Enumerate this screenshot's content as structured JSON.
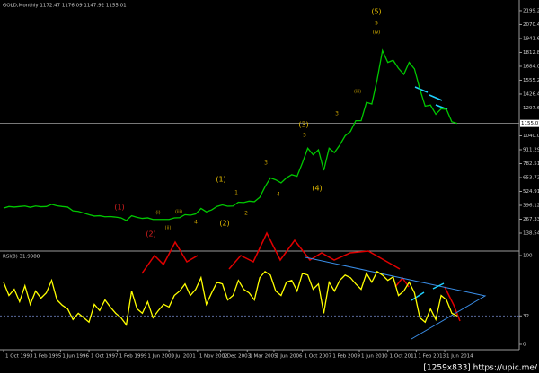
{
  "chart_data": [
    {
      "type": "line",
      "title": "GOLD,Monthly  1172.47 1176.09 1147.92 1155.01",
      "color": "#00c800",
      "x": [
        "1993-10",
        "1994-01",
        "1994-04",
        "1994-07",
        "1994-10",
        "1995-01",
        "1995-04",
        "1995-07",
        "1995-10",
        "1996-01",
        "1996-04",
        "1996-07",
        "1996-10",
        "1997-01",
        "1997-04",
        "1997-07",
        "1997-10",
        "1998-01",
        "1998-04",
        "1998-07",
        "1998-10",
        "1999-01",
        "1999-04",
        "1999-07",
        "1999-10",
        "2000-01",
        "2000-04",
        "2000-07",
        "2000-10",
        "2001-01",
        "2001-04",
        "2001-07",
        "2001-10",
        "2002-01",
        "2002-04",
        "2002-07",
        "2002-10",
        "2003-01",
        "2003-04",
        "2003-07",
        "2003-10",
        "2004-01",
        "2004-04",
        "2004-07",
        "2004-10",
        "2005-01",
        "2005-04",
        "2005-07",
        "2005-10",
        "2006-01",
        "2006-04",
        "2006-07",
        "2006-10",
        "2007-01",
        "2007-04",
        "2007-07",
        "2007-10",
        "2008-01",
        "2008-04",
        "2008-07",
        "2008-10",
        "2009-01",
        "2009-04",
        "2009-07",
        "2009-10",
        "2010-01",
        "2010-04",
        "2010-07",
        "2010-10",
        "2011-01",
        "2011-04",
        "2011-07",
        "2011-10",
        "2012-01",
        "2012-04",
        "2012-07",
        "2012-10",
        "2013-01",
        "2013-04",
        "2013-07",
        "2013-10",
        "2014-01",
        "2014-04",
        "2014-07",
        "2014-10",
        "2015-01"
      ],
      "values": [
        370,
        385,
        380,
        385,
        390,
        378,
        390,
        383,
        385,
        405,
        392,
        385,
        380,
        345,
        340,
        325,
        310,
        297,
        300,
        290,
        292,
        287,
        280,
        255,
        300,
        285,
        275,
        280,
        265,
        265,
        265,
        265,
        280,
        282,
        310,
        305,
        317,
        367,
        336,
        354,
        386,
        400,
        388,
        390,
        425,
        422,
        435,
        430,
        470,
        568,
        650,
        632,
        604,
        650,
        680,
        665,
        790,
        925,
        865,
        910,
        720,
        925,
        885,
        955,
        1040,
        1080,
        1180,
        1180,
        1350,
        1335,
        1560,
        1830,
        1720,
        1740,
        1665,
        1610,
        1720,
        1660,
        1475,
        1315,
        1325,
        1240,
        1290,
        1285,
        1170,
        1155.01
      ],
      "current_price": 1155.01,
      "ylim": [
        -11,
        2282
      ],
      "yticks": [
        138.54,
        267.33,
        396.12,
        524.91,
        653.72,
        782.51,
        911.29,
        1040.08,
        1297.66,
        1426.45,
        1555.24,
        1684.03,
        1812.82,
        1941.61,
        2070.41,
        2199.25
      ],
      "xticks": [
        {
          "value": "1993-10",
          "label": "1 Oct 1993"
        },
        {
          "value": "1995-02",
          "label": "1 Feb 1995"
        },
        {
          "value": "1996-06",
          "label": "1 Jun 1996"
        },
        {
          "value": "1997-10",
          "label": "1 Oct 1997"
        },
        {
          "value": "1999-02",
          "label": "1 Feb 1999"
        },
        {
          "value": "2000-06",
          "label": "1 Jun 2000"
        },
        {
          "value": "2001-07",
          "label": "1 Jul 2001"
        },
        {
          "value": "2002-11",
          "label": "1 Nov 2002"
        },
        {
          "value": "2003-12",
          "label": "1 Dec 2003"
        },
        {
          "value": "2005-03",
          "label": "1 Mar 2005"
        },
        {
          "value": "2006-06",
          "label": "1 Jun 2006"
        },
        {
          "value": "2007-10",
          "label": "1 Oct 2007"
        },
        {
          "value": "2009-02",
          "label": "1 Feb 2009"
        },
        {
          "value": "2010-06",
          "label": "1 Jun 2010"
        },
        {
          "value": "2011-10",
          "label": "1 Oct 2011"
        },
        {
          "value": "2013-02",
          "label": "1 Feb 2013"
        },
        {
          "value": "2014-06",
          "label": "1 Jun 2014"
        }
      ],
      "annotations": [
        {
          "text": "(5)",
          "color": "#e8c000"
        },
        {
          "text": "5",
          "color": "#e8c000"
        },
        {
          "text": "(iv)",
          "color": "#e8c000"
        },
        {
          "text": "(3)",
          "color": "#e8c000"
        },
        {
          "text": "(4)",
          "color": "#e8c000"
        },
        {
          "text": "(1)",
          "color": "#e8c000"
        },
        {
          "text": "(2)",
          "color": "#e8c000"
        },
        {
          "text": "(1)",
          "color": "#e02020"
        },
        {
          "text": "(2)",
          "color": "#e02020"
        },
        {
          "text": "3",
          "color": "#c8a000"
        },
        {
          "text": "4",
          "color": "#c8a000"
        },
        {
          "text": "1",
          "color": "#c8a000"
        },
        {
          "text": "2",
          "color": "#c8a000"
        },
        {
          "text": "5",
          "color": "#c8a000"
        },
        {
          "text": "3",
          "color": "#c8a000"
        },
        {
          "text": "(iii)",
          "color": "#c8a000"
        },
        {
          "text": "(i)",
          "color": "#c8a000"
        },
        {
          "text": "(ii)",
          "color": "#c8a000"
        },
        {
          "text": "(iii)",
          "color": "#c8a000"
        },
        {
          "text": "4",
          "color": "#c8a000"
        }
      ]
    },
    {
      "type": "line",
      "title": "RSI(8) 31.9988",
      "color": "#ffff00",
      "x": [
        "1993-10",
        "1994-01",
        "1994-04",
        "1994-07",
        "1994-10",
        "1995-01",
        "1995-04",
        "1995-07",
        "1995-10",
        "1996-01",
        "1996-04",
        "1996-07",
        "1996-10",
        "1997-01",
        "1997-04",
        "1997-07",
        "1997-10",
        "1998-01",
        "1998-04",
        "1998-07",
        "1998-10",
        "1999-01",
        "1999-04",
        "1999-07",
        "1999-10",
        "2000-01",
        "2000-04",
        "2000-07",
        "2000-10",
        "2001-01",
        "2001-04",
        "2001-07",
        "2001-10",
        "2002-01",
        "2002-04",
        "2002-07",
        "2002-10",
        "2003-01",
        "2003-04",
        "2003-07",
        "2003-10",
        "2004-01",
        "2004-04",
        "2004-07",
        "2004-10",
        "2005-01",
        "2005-04",
        "2005-07",
        "2005-10",
        "2006-01",
        "2006-04",
        "2006-07",
        "2006-10",
        "2007-01",
        "2007-04",
        "2007-07",
        "2007-10",
        "2008-01",
        "2008-04",
        "2008-07",
        "2008-10",
        "2009-01",
        "2009-04",
        "2009-07",
        "2009-10",
        "2010-01",
        "2010-04",
        "2010-07",
        "2010-10",
        "2011-01",
        "2011-04",
        "2011-07",
        "2011-10",
        "2012-01",
        "2012-04",
        "2012-07",
        "2012-10",
        "2013-01",
        "2013-04",
        "2013-07",
        "2013-10",
        "2014-01",
        "2014-04",
        "2014-07",
        "2014-10",
        "2015-01"
      ],
      "values": [
        70,
        55,
        62,
        48,
        66,
        45,
        60,
        52,
        58,
        72,
        50,
        44,
        40,
        28,
        35,
        30,
        25,
        45,
        38,
        50,
        42,
        35,
        30,
        22,
        60,
        40,
        35,
        48,
        30,
        38,
        45,
        42,
        55,
        60,
        68,
        55,
        62,
        75,
        45,
        58,
        70,
        68,
        50,
        55,
        72,
        62,
        58,
        50,
        75,
        82,
        78,
        60,
        55,
        70,
        72,
        60,
        80,
        78,
        62,
        68,
        35,
        70,
        60,
        72,
        78,
        75,
        68,
        62,
        80,
        70,
        82,
        78,
        72,
        76,
        55,
        60,
        70,
        58,
        30,
        25,
        40,
        28,
        55,
        50,
        35,
        31.9988
      ],
      "ylim": [
        0,
        100
      ],
      "yticks": [
        100,
        32,
        0
      ]
    }
  ],
  "watermark": "[1259x833] https://upic.me/"
}
